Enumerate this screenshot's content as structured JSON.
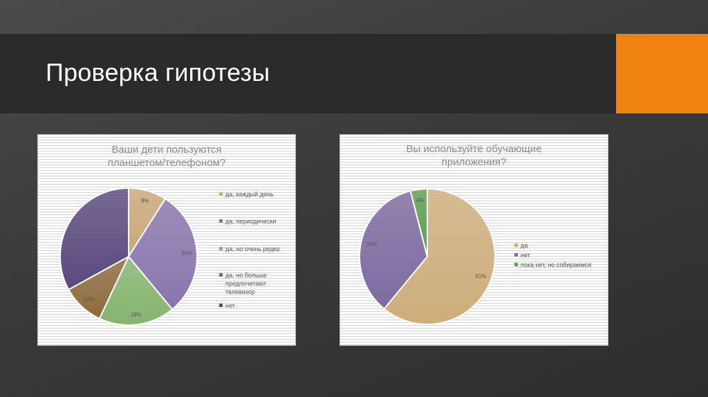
{
  "slide": {
    "title": "Проверка гипотезы",
    "accent_color": "#f0820f"
  },
  "chart_data": [
    {
      "type": "pie",
      "title": "Ваши дети пользуются планшетом/телефоном?",
      "title_lines": [
        "Ваши дети пользуются",
        "планшетом/телефоном?"
      ],
      "categories": [
        "да, каждый день",
        "да, периодически",
        "да, но очень редко",
        "да, но больше предпочитают телевизор",
        "нет"
      ],
      "legend_lines": [
        "да, каждый день",
        "да, периодически",
        "да, но очень редко",
        "да, но больше\nпредпочитают\nтелевизор",
        "нет"
      ],
      "values": [
        9,
        30,
        18,
        10,
        33
      ],
      "labels": [
        "9%",
        "30%",
        "18%",
        "10%",
        ""
      ],
      "colors": [
        "#c9a97a",
        "#8a76ad",
        "#86b56f",
        "#8e6b3e",
        "#5a4a7e"
      ],
      "legend_position": "right"
    },
    {
      "type": "pie",
      "title": "Вы используйте обучающие приложения?",
      "title_lines": [
        "Вы используйте обучающие",
        "приложения?"
      ],
      "categories": [
        "да",
        "нет",
        "пока нет, но собираемся"
      ],
      "legend_lines": [
        "да",
        "нет",
        "пока нет, но собираемся"
      ],
      "values": [
        61,
        35,
        4
      ],
      "labels": [
        "61%",
        "35%",
        "4%"
      ],
      "colors": [
        "#cfae7c",
        "#7d6ba0",
        "#5e9e53"
      ],
      "legend_position": "right"
    }
  ]
}
